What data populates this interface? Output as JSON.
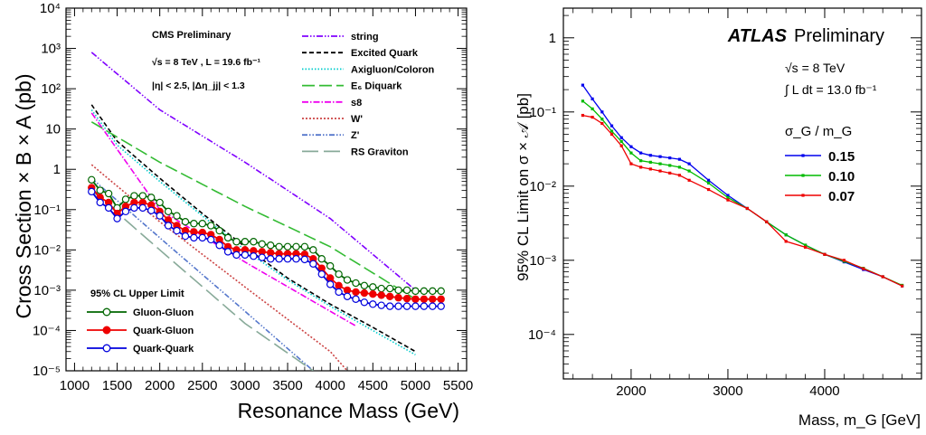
{
  "chart_data": [
    {
      "type": "line",
      "title": "CMS Preliminary",
      "xlabel": "Resonance Mass (GeV)",
      "ylabel": "Cross Section × B × A (pb)",
      "xlim": [
        900,
        5600
      ],
      "ylim_log10": [
        -5,
        4
      ],
      "y_scale": "log",
      "x_ticks": [
        "1000",
        "1500",
        "2000",
        "2500",
        "3000",
        "3500",
        "4000",
        "4500",
        "5000",
        "5500"
      ],
      "y_ticks": [
        "10⁴",
        "10³",
        "10²",
        "10",
        "1",
        "10⁻¹",
        "10⁻²",
        "10⁻³",
        "10⁻⁴",
        "10⁻⁵"
      ],
      "annotations": [
        "CMS Preliminary",
        "√s = 8 TeV , L = 19.6 fb⁻¹",
        "|η| < 2.5, |Δη_jj| < 1.3"
      ],
      "limit_legend_title": "95% CL Upper Limit",
      "theory_series": [
        {
          "name": "string",
          "color": "#8000ff",
          "dash": "7,2,1.5,2,1.5,2",
          "x": [
            1200,
            2000,
            3000,
            4000,
            5000
          ],
          "y": [
            800,
            30,
            1.5,
            0.06,
            0.001
          ]
        },
        {
          "name": "Excited Quark",
          "color": "#000000",
          "dash": "5,3",
          "x": [
            1200,
            1500,
            2000,
            2500,
            3000,
            3500,
            4000,
            4500,
            5000
          ],
          "y": [
            40,
            5,
            0.6,
            0.08,
            0.012,
            0.002,
            0.00045,
            0.00012,
            3e-05
          ]
        },
        {
          "name": "Axigluon/Coloron",
          "color": "#00cccc",
          "dash": "1.5,2",
          "x": [
            1200,
            1500,
            2000,
            2500,
            3000,
            3500,
            4000,
            4500,
            5000
          ],
          "y": [
            30,
            4,
            0.5,
            0.07,
            0.01,
            0.0018,
            0.0004,
            0.0001,
            2.5e-05
          ]
        },
        {
          "name": "E₆ Diquark",
          "color": "#33bb33",
          "dash": "14,5",
          "x": [
            1200,
            2000,
            3000,
            4000,
            5000
          ],
          "y": [
            15,
            1.5,
            0.12,
            0.012,
            0.0006
          ]
        },
        {
          "name": "s8",
          "color": "#ee00ee",
          "dash": "7,2,1.5,2",
          "x": [
            1200,
            2000,
            3000,
            4000,
            4300
          ],
          "y": [
            25,
            0.1,
            0.005,
            0.0003,
            0.00013
          ]
        },
        {
          "name": "W'",
          "color": "#cc4444",
          "dash": "2,2",
          "x": [
            1200,
            2000,
            3000,
            4000,
            4200
          ],
          "y": [
            1.3,
            0.05,
            0.0012,
            3e-05,
            1e-05
          ]
        },
        {
          "name": "Z'",
          "color": "#5577cc",
          "dash": "6,2,1.5,2,1.5,2",
          "x": [
            1200,
            2000,
            3000,
            3800
          ],
          "y": [
            0.6,
            0.02,
            0.0003,
            1e-05
          ]
        },
        {
          "name": "RS Graviton",
          "color": "#88aa99",
          "dash": "18,6",
          "x": [
            1200,
            2000,
            3000,
            3800
          ],
          "y": [
            0.3,
            0.01,
            0.00015,
            1e-05
          ]
        }
      ],
      "limit_series": [
        {
          "name": "Gluon-Gluon",
          "color": "#006600",
          "marker": "open-circle",
          "x": [
            1200,
            1300,
            1400,
            1500,
            1600,
            1700,
            1800,
            1900,
            2000,
            2100,
            2200,
            2300,
            2400,
            2500,
            2600,
            2700,
            2800,
            2900,
            3000,
            3100,
            3200,
            3300,
            3400,
            3500,
            3600,
            3700,
            3800,
            3900,
            4000,
            4100,
            4200,
            4300,
            4400,
            4500,
            4600,
            4700,
            4800,
            4900,
            5000,
            5100,
            5200,
            5300
          ],
          "y": [
            0.55,
            0.3,
            0.25,
            0.11,
            0.18,
            0.22,
            0.22,
            0.2,
            0.15,
            0.09,
            0.07,
            0.05,
            0.045,
            0.045,
            0.04,
            0.03,
            0.02,
            0.016,
            0.016,
            0.016,
            0.014,
            0.013,
            0.012,
            0.012,
            0.012,
            0.012,
            0.01,
            0.006,
            0.004,
            0.0025,
            0.0018,
            0.0015,
            0.0013,
            0.0012,
            0.0011,
            0.0011,
            0.001,
            0.001,
            0.00095,
            0.00095,
            0.00095,
            0.00095
          ]
        },
        {
          "name": "Quark-Gluon",
          "color": "#ee0000",
          "marker": "filled-circle",
          "x": [
            1200,
            1300,
            1400,
            1500,
            1600,
            1700,
            1800,
            1900,
            2000,
            2100,
            2200,
            2300,
            2400,
            2500,
            2600,
            2700,
            2800,
            2900,
            3000,
            3100,
            3200,
            3300,
            3400,
            3500,
            3600,
            3700,
            3800,
            3900,
            4000,
            4100,
            4200,
            4300,
            4400,
            4500,
            4600,
            4700,
            4800,
            4900,
            5000,
            5100,
            5200,
            5300
          ],
          "y": [
            0.35,
            0.2,
            0.15,
            0.08,
            0.12,
            0.15,
            0.15,
            0.13,
            0.09,
            0.055,
            0.04,
            0.03,
            0.028,
            0.027,
            0.024,
            0.018,
            0.012,
            0.01,
            0.01,
            0.0095,
            0.009,
            0.0085,
            0.008,
            0.008,
            0.008,
            0.0078,
            0.006,
            0.0035,
            0.002,
            0.0013,
            0.001,
            0.0009,
            0.00085,
            0.0008,
            0.00075,
            0.0007,
            0.00065,
            0.00062,
            0.0006,
            0.0006,
            0.0006,
            0.0006
          ]
        },
        {
          "name": "Quark-Quark",
          "color": "#0000dd",
          "marker": "open-circle",
          "x": [
            1200,
            1300,
            1400,
            1500,
            1600,
            1700,
            1800,
            1900,
            2000,
            2100,
            2200,
            2300,
            2400,
            2500,
            2600,
            2700,
            2800,
            2900,
            3000,
            3100,
            3200,
            3300,
            3400,
            3500,
            3600,
            3700,
            3800,
            3900,
            4000,
            4100,
            4200,
            4300,
            4400,
            4500,
            4600,
            4700,
            4800,
            4900,
            5000,
            5100,
            5200,
            5300
          ],
          "y": [
            0.28,
            0.15,
            0.11,
            0.06,
            0.09,
            0.11,
            0.11,
            0.095,
            0.07,
            0.04,
            0.03,
            0.022,
            0.02,
            0.02,
            0.018,
            0.013,
            0.009,
            0.0075,
            0.0075,
            0.007,
            0.0065,
            0.006,
            0.006,
            0.006,
            0.006,
            0.0058,
            0.0045,
            0.0025,
            0.0014,
            0.0009,
            0.0007,
            0.0006,
            0.0005,
            0.00045,
            0.00042,
            0.0004,
            0.0004,
            0.0004,
            0.0004,
            0.0004,
            0.0004,
            0.0004
          ]
        }
      ]
    },
    {
      "type": "line",
      "title": "ATLAS",
      "title_suffix": "Preliminary",
      "xlabel": "Mass, m_G [GeV]",
      "ylabel": "95% CL Limit on σ × 𝒜 [pb]",
      "xlim": [
        1300,
        5000
      ],
      "ylim_log10": [
        -4.6,
        0.4
      ],
      "y_scale": "log",
      "x_ticks": [
        "2000",
        "3000",
        "4000"
      ],
      "y_ticks": [
        "1",
        "10⁻¹",
        "10⁻²",
        "10⁻³",
        "10⁻⁴"
      ],
      "annotations": [
        "√s = 8 TeV",
        "∫ L dt = 13.0 fb⁻¹"
      ],
      "legend_title": "σ_G / m_G",
      "series": [
        {
          "name": "0.15",
          "color": "#0000ee",
          "x": [
            1500,
            1600,
            1700,
            1800,
            1900,
            2000,
            2100,
            2200,
            2300,
            2400,
            2500,
            2600,
            2800,
            3000,
            3200,
            3400,
            3600,
            3800,
            4000,
            4200,
            4400,
            4600,
            4800
          ],
          "y": [
            0.23,
            0.15,
            0.1,
            0.065,
            0.045,
            0.034,
            0.028,
            0.026,
            0.025,
            0.024,
            0.023,
            0.02,
            0.012,
            0.0075,
            0.005,
            0.0033,
            0.0022,
            0.0016,
            0.0012,
            0.00095,
            0.00075,
            0.0006,
            0.00045
          ]
        },
        {
          "name": "0.10",
          "color": "#00bb00",
          "x": [
            1500,
            1600,
            1700,
            1800,
            1900,
            2000,
            2100,
            2200,
            2300,
            2400,
            2500,
            2600,
            2800,
            3000,
            3200,
            3400,
            3600,
            3800,
            4000,
            4200,
            4400,
            4600,
            4800
          ],
          "y": [
            0.14,
            0.11,
            0.08,
            0.055,
            0.04,
            0.028,
            0.022,
            0.021,
            0.02,
            0.019,
            0.018,
            0.016,
            0.011,
            0.007,
            0.005,
            0.0033,
            0.0022,
            0.0016,
            0.0012,
            0.00097,
            0.00078,
            0.0006,
            0.00046
          ]
        },
        {
          "name": "0.07",
          "color": "#ee0000",
          "x": [
            1500,
            1600,
            1700,
            1800,
            1900,
            2000,
            2100,
            2200,
            2300,
            2400,
            2500,
            2600,
            2800,
            3000,
            3200,
            3400,
            3600,
            3800,
            4000,
            4200,
            4400,
            4600,
            4800
          ],
          "y": [
            0.09,
            0.085,
            0.07,
            0.05,
            0.035,
            0.02,
            0.018,
            0.017,
            0.016,
            0.015,
            0.014,
            0.012,
            0.009,
            0.0065,
            0.005,
            0.0033,
            0.0018,
            0.0015,
            0.0012,
            0.001,
            0.00077,
            0.0006,
            0.00045
          ]
        }
      ]
    }
  ]
}
